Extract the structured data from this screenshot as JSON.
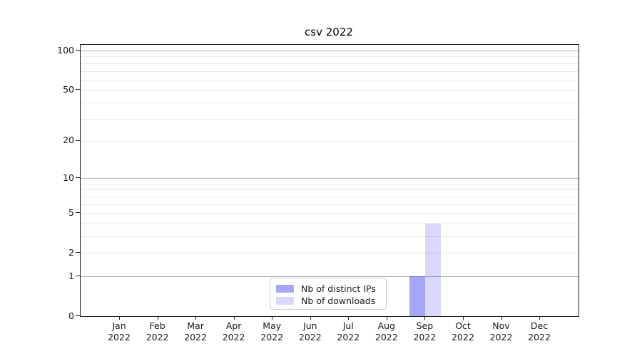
{
  "page": {
    "title": "csv 2022"
  },
  "chart_data": {
    "type": "bar",
    "title": "csv 2022",
    "xlabel": "",
    "ylabel": "",
    "yscale": "log1p",
    "ylim": [
      0,
      110.5
    ],
    "grid": true,
    "x_tick_labels": [
      [
        "Jan",
        "2022"
      ],
      [
        "Feb",
        "2022"
      ],
      [
        "Mar",
        "2022"
      ],
      [
        "Apr",
        "2022"
      ],
      [
        "May",
        "2022"
      ],
      [
        "Jun",
        "2022"
      ],
      [
        "Jul",
        "2022"
      ],
      [
        "Aug",
        "2022"
      ],
      [
        "Sep",
        "2022"
      ],
      [
        "Oct",
        "2022"
      ],
      [
        "Nov",
        "2022"
      ],
      [
        "Dec",
        "2022"
      ]
    ],
    "y_tick_values": [
      0,
      1,
      2,
      5,
      10,
      20,
      50,
      100
    ],
    "y_major_gridlines": [
      1,
      10,
      100
    ],
    "y_minor_gridlines": [
      2,
      3,
      4,
      5,
      6,
      7,
      8,
      9,
      20,
      30,
      40,
      50,
      60,
      70,
      80,
      90
    ],
    "series": [
      {
        "name": "Nb of distinct IPs",
        "color": "rgba(0,0,230,0.35)",
        "values": [
          0,
          0,
          0,
          0,
          0,
          0,
          0,
          0,
          1,
          0,
          0,
          0
        ]
      },
      {
        "name": "Nb of downloads",
        "color": "rgba(0,0,230,0.15)",
        "values": [
          0,
          0,
          0,
          0,
          0,
          0,
          0,
          0,
          4,
          0,
          0,
          0
        ]
      }
    ],
    "legend": {
      "position": "lower center"
    }
  },
  "colors": {
    "major_grid": "#b0b0b0",
    "minor_grid": "#e9e9e9",
    "spine": "#1c1c1c",
    "text": "#1a1a1a",
    "background": "#ffffff",
    "legend_border": "#cccccc"
  }
}
